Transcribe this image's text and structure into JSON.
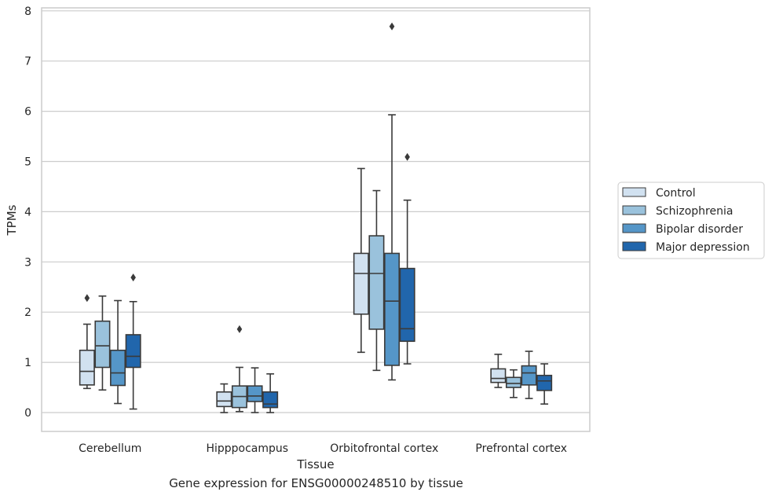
{
  "caption": "Gene expression for ENSG00000248510 by tissue",
  "chart_data": {
    "type": "box",
    "title": "",
    "xlabel": "Tissue",
    "ylabel": "TPMs",
    "ylim": [
      -0.35,
      8.1
    ],
    "yticks": [
      0,
      1,
      2,
      3,
      4,
      5,
      6,
      7,
      8
    ],
    "grid": true,
    "legend_position": "right",
    "categories": [
      "Cerebellum",
      "Hipppocampus",
      "Orbitofrontal cortex",
      "Prefrontal cortex"
    ],
    "series": [
      {
        "name": "Control",
        "color": "#d1e1f0",
        "boxes": [
          {
            "whisker_low": 0.48,
            "q1": 0.55,
            "median": 0.82,
            "q3": 1.24,
            "whisker_high": 1.76,
            "outliers": [
              2.28
            ]
          },
          {
            "whisker_low": 0.0,
            "q1": 0.12,
            "median": 0.23,
            "q3": 0.41,
            "whisker_high": 0.57,
            "outliers": []
          },
          {
            "whisker_low": 1.2,
            "q1": 1.96,
            "median": 2.77,
            "q3": 3.17,
            "whisker_high": 4.86,
            "outliers": []
          },
          {
            "whisker_low": 0.5,
            "q1": 0.6,
            "median": 0.68,
            "q3": 0.87,
            "whisker_high": 1.16,
            "outliers": []
          }
        ]
      },
      {
        "name": "Schizophrenia",
        "color": "#9ac2dc",
        "boxes": [
          {
            "whisker_low": 0.45,
            "q1": 0.9,
            "median": 1.33,
            "q3": 1.82,
            "whisker_high": 2.32,
            "outliers": []
          },
          {
            "whisker_low": 0.02,
            "q1": 0.1,
            "median": 0.32,
            "q3": 0.53,
            "whisker_high": 0.9,
            "outliers": [
              1.66
            ]
          },
          {
            "whisker_low": 0.84,
            "q1": 1.66,
            "median": 2.77,
            "q3": 3.52,
            "whisker_high": 4.42,
            "outliers": []
          },
          {
            "whisker_low": 0.3,
            "q1": 0.5,
            "median": 0.58,
            "q3": 0.7,
            "whisker_high": 0.85,
            "outliers": []
          }
        ]
      },
      {
        "name": "Bipolar disorder",
        "color": "#5596c8",
        "boxes": [
          {
            "whisker_low": 0.18,
            "q1": 0.54,
            "median": 0.79,
            "q3": 1.24,
            "whisker_high": 2.23,
            "outliers": []
          },
          {
            "whisker_low": 0.0,
            "q1": 0.22,
            "median": 0.33,
            "q3": 0.53,
            "whisker_high": 0.89,
            "outliers": []
          },
          {
            "whisker_low": 0.65,
            "q1": 0.94,
            "median": 2.22,
            "q3": 3.17,
            "whisker_high": 5.93,
            "outliers": [
              7.69
            ]
          },
          {
            "whisker_low": 0.28,
            "q1": 0.55,
            "median": 0.79,
            "q3": 0.93,
            "whisker_high": 1.22,
            "outliers": []
          }
        ]
      },
      {
        "name": "Major depression",
        "color": "#2166ac",
        "boxes": [
          {
            "whisker_low": 0.07,
            "q1": 0.9,
            "median": 1.12,
            "q3": 1.55,
            "whisker_high": 2.21,
            "outliers": [
              2.69
            ]
          },
          {
            "whisker_low": 0.0,
            "q1": 0.1,
            "median": 0.17,
            "q3": 0.41,
            "whisker_high": 0.77,
            "outliers": []
          },
          {
            "whisker_low": 0.97,
            "q1": 1.42,
            "median": 1.67,
            "q3": 2.87,
            "whisker_high": 4.23,
            "outliers": [
              5.09
            ]
          },
          {
            "whisker_low": 0.17,
            "q1": 0.44,
            "median": 0.63,
            "q3": 0.74,
            "whisker_high": 0.97,
            "outliers": []
          }
        ]
      }
    ]
  }
}
